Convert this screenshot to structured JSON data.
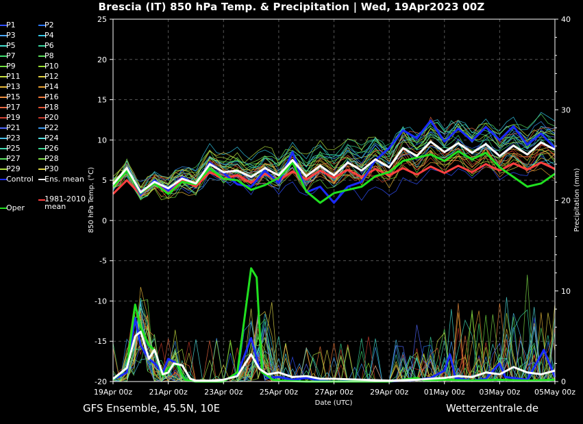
{
  "title": "Brescia  (IT)  850 hPa Temp. & Precipitation | Wed, 19Apr2023 00Z",
  "footer": {
    "source": "GFS Ensemble, 45.5N, 10E",
    "site": "Wetterzentrale.de"
  },
  "legend": [
    {
      "label": "P1",
      "color": "#3050ff"
    },
    {
      "label": "P2",
      "color": "#2a78ff"
    },
    {
      "label": "P3",
      "color": "#4aa8ff"
    },
    {
      "label": "P4",
      "color": "#33c8e8"
    },
    {
      "label": "P5",
      "color": "#44e0d0"
    },
    {
      "label": "P6",
      "color": "#38d8a0"
    },
    {
      "label": "P7",
      "color": "#40e070"
    },
    {
      "label": "P8",
      "color": "#5ae05a"
    },
    {
      "label": "P9",
      "color": "#70e040"
    },
    {
      "label": "P10",
      "color": "#98e030"
    },
    {
      "label": "P11",
      "color": "#c8e040"
    },
    {
      "label": "P12",
      "color": "#e0d040"
    },
    {
      "label": "P13",
      "color": "#e8b838"
    },
    {
      "label": "P14",
      "color": "#e8a030"
    },
    {
      "label": "P15",
      "color": "#f09040"
    },
    {
      "label": "P16",
      "color": "#f07838"
    },
    {
      "label": "P17",
      "color": "#e86840"
    },
    {
      "label": "P18",
      "color": "#e05030"
    },
    {
      "label": "P19",
      "color": "#d04030"
    },
    {
      "label": "P20",
      "color": "#c83828"
    },
    {
      "label": "P21",
      "color": "#5068ff"
    },
    {
      "label": "P22",
      "color": "#3898f0"
    },
    {
      "label": "P23",
      "color": "#48c0e8"
    },
    {
      "label": "P24",
      "color": "#50e0e0"
    },
    {
      "label": "P25",
      "color": "#40d8b0"
    },
    {
      "label": "P26",
      "color": "#38d890"
    },
    {
      "label": "P27",
      "color": "#58e060"
    },
    {
      "label": "P28",
      "color": "#80e048"
    },
    {
      "label": "P29",
      "color": "#b0e040"
    },
    {
      "label": "P30",
      "color": "#e0d848"
    },
    {
      "label": "Control",
      "color": "#1a2aff"
    },
    {
      "label": "Ens. mean",
      "color": "#ffffff"
    },
    {
      "label": "1981-2010 mean",
      "color": "#ff4040"
    },
    {
      "label": "Oper",
      "color": "#20e020"
    }
  ],
  "chart_data": {
    "type": "line",
    "title": "Brescia  (IT)  850 hPa Temp. & Precipitation | Wed, 19Apr2023 00Z",
    "xlabel": "Date (UTC)",
    "ylabel": "850 hPa Temp. (°C)",
    "y2label": "Precipitation (mm)",
    "xlim": [
      0,
      16
    ],
    "x_unit": "days since 19Apr 00z",
    "x_ticks": [
      {
        "day": 0,
        "label": "19Apr 00z"
      },
      {
        "day": 2,
        "label": "21Apr 00z"
      },
      {
        "day": 4,
        "label": "23Apr 00z"
      },
      {
        "day": 6,
        "label": "25Apr 00z"
      },
      {
        "day": 8,
        "label": "27Apr 00z"
      },
      {
        "day": 10,
        "label": "29Apr 00z"
      },
      {
        "day": 12,
        "label": "01May 00z"
      },
      {
        "day": 14,
        "label": "03May 00z"
      },
      {
        "day": 16,
        "label": "05May 00z"
      }
    ],
    "ylim": [
      -20,
      25
    ],
    "y_ticks": [
      "25",
      "20",
      "15",
      "10",
      "5",
      "0",
      "-5",
      "-10",
      "-15",
      "-20"
    ],
    "y2lim": [
      0,
      40
    ],
    "y2_ticks": [
      "40",
      "30",
      "20",
      "10",
      "0"
    ],
    "grid": true,
    "legend_position": "left",
    "series": [
      {
        "name": "Ens. mean",
        "axis": "temp",
        "color": "#ffffff",
        "points": [
          [
            0,
            4.5
          ],
          [
            0.5,
            6.5
          ],
          [
            1,
            3.5
          ],
          [
            1.5,
            4.8
          ],
          [
            2,
            4
          ],
          [
            2.5,
            5.2
          ],
          [
            3,
            4.6
          ],
          [
            3.5,
            7
          ],
          [
            4,
            6
          ],
          [
            4.5,
            6.2
          ],
          [
            5,
            5.4
          ],
          [
            5.5,
            6.5
          ],
          [
            6,
            5.6
          ],
          [
            6.5,
            7.5
          ],
          [
            7,
            5.5
          ],
          [
            7.5,
            6.8
          ],
          [
            8,
            5.6
          ],
          [
            8.5,
            7.2
          ],
          [
            9,
            6.2
          ],
          [
            9.5,
            7.6
          ],
          [
            10,
            6.6
          ],
          [
            10.5,
            9
          ],
          [
            11,
            8
          ],
          [
            11.5,
            9.8
          ],
          [
            12,
            8.5
          ],
          [
            12.5,
            9.6
          ],
          [
            13,
            8.4
          ],
          [
            13.5,
            9.5
          ],
          [
            14,
            8
          ],
          [
            14.5,
            9.3
          ],
          [
            15,
            8.2
          ],
          [
            15.5,
            9.7
          ],
          [
            16,
            8.8
          ]
        ]
      },
      {
        "name": "1981-2010 mean",
        "axis": "temp",
        "color": "#ff4040",
        "points": [
          [
            0,
            3.3
          ],
          [
            0.5,
            5
          ],
          [
            1,
            3.2
          ],
          [
            1.5,
            4.6
          ],
          [
            2,
            3.6
          ],
          [
            2.5,
            5
          ],
          [
            3,
            4.2
          ],
          [
            3.5,
            6
          ],
          [
            4,
            5.2
          ],
          [
            4.5,
            5.6
          ],
          [
            5,
            4.7
          ],
          [
            5.5,
            5.8
          ],
          [
            6,
            5
          ],
          [
            6.5,
            6.1
          ],
          [
            7,
            5.1
          ],
          [
            7.5,
            6.2
          ],
          [
            8,
            5.3
          ],
          [
            8.5,
            6.3
          ],
          [
            9,
            5.4
          ],
          [
            9.5,
            6.4
          ],
          [
            10,
            5.6
          ],
          [
            10.5,
            6.5
          ],
          [
            11,
            5.7
          ],
          [
            11.5,
            6.7
          ],
          [
            12,
            5.9
          ],
          [
            12.5,
            6.8
          ],
          [
            13,
            6
          ],
          [
            13.5,
            7
          ],
          [
            14,
            6.2
          ],
          [
            14.5,
            7.1
          ],
          [
            15,
            6.3
          ],
          [
            15.5,
            7.2
          ],
          [
            16,
            6.4
          ]
        ]
      },
      {
        "name": "Control",
        "axis": "temp",
        "color": "#1a2aff",
        "points": [
          [
            0,
            4.3
          ],
          [
            0.5,
            6.5
          ],
          [
            1,
            3.2
          ],
          [
            1.5,
            5
          ],
          [
            2,
            3.7
          ],
          [
            2.5,
            5.4
          ],
          [
            3,
            4.5
          ],
          [
            3.5,
            7.2
          ],
          [
            4,
            5.9
          ],
          [
            4.5,
            4.5
          ],
          [
            5,
            4.2
          ],
          [
            5.5,
            6.2
          ],
          [
            6,
            4.7
          ],
          [
            6.5,
            8.5
          ],
          [
            7,
            3.5
          ],
          [
            7.5,
            4.2
          ],
          [
            8,
            2.2
          ],
          [
            8.5,
            4.2
          ],
          [
            9,
            4.8
          ],
          [
            9.5,
            7.5
          ],
          [
            10,
            9
          ],
          [
            10.5,
            11.2
          ],
          [
            11,
            10.2
          ],
          [
            11.5,
            12.4
          ],
          [
            12,
            9.8
          ],
          [
            12.5,
            11.4
          ],
          [
            13,
            9.9
          ],
          [
            13.5,
            11.6
          ],
          [
            14,
            10
          ],
          [
            14.5,
            11.7
          ],
          [
            15,
            9.4
          ],
          [
            15.5,
            10.8
          ],
          [
            16,
            9
          ]
        ]
      },
      {
        "name": "Oper",
        "axis": "temp",
        "color": "#20e020",
        "points": [
          [
            0,
            4.2
          ],
          [
            0.5,
            6.2
          ],
          [
            1,
            3.4
          ],
          [
            1.5,
            4.6
          ],
          [
            2,
            3.3
          ],
          [
            2.5,
            4.8
          ],
          [
            3,
            4.5
          ],
          [
            3.5,
            6.5
          ],
          [
            4,
            5.2
          ],
          [
            4.5,
            5
          ],
          [
            5,
            3.8
          ],
          [
            5.5,
            4.4
          ],
          [
            6,
            5.3
          ],
          [
            6.5,
            7.2
          ],
          [
            7,
            3.6
          ],
          [
            7.5,
            2.2
          ],
          [
            8,
            3.4
          ],
          [
            8.5,
            3.8
          ],
          [
            9,
            4.2
          ],
          [
            9.5,
            5.5
          ],
          [
            10,
            6
          ],
          [
            10.5,
            7.4
          ],
          [
            11,
            7.8
          ],
          [
            11.5,
            8.2
          ],
          [
            12,
            7.4
          ],
          [
            12.5,
            8.6
          ],
          [
            13,
            7.6
          ],
          [
            13.5,
            8.4
          ],
          [
            14,
            6.6
          ],
          [
            14.5,
            5.4
          ],
          [
            15,
            4.2
          ],
          [
            15.5,
            4.6
          ],
          [
            16,
            5.8
          ]
        ]
      },
      {
        "name": "Ens. mean",
        "axis": "precip",
        "color": "#ffffff",
        "points": [
          [
            0,
            0.3
          ],
          [
            0.5,
            1.5
          ],
          [
            0.8,
            5
          ],
          [
            1,
            5.5
          ],
          [
            1.3,
            2.5
          ],
          [
            1.5,
            3.5
          ],
          [
            1.8,
            0.8
          ],
          [
            2,
            1
          ],
          [
            2.2,
            2
          ],
          [
            2.5,
            1.8
          ],
          [
            2.8,
            0.3
          ],
          [
            3,
            0.1
          ],
          [
            3.5,
            0.1
          ],
          [
            4,
            0.2
          ],
          [
            4.5,
            0.6
          ],
          [
            5,
            3
          ],
          [
            5.3,
            1.4
          ],
          [
            5.6,
            0.8
          ],
          [
            6,
            1
          ],
          [
            6.5,
            0.5
          ],
          [
            7,
            0.6
          ],
          [
            7.5,
            0.3
          ],
          [
            8,
            0.3
          ],
          [
            9,
            0.2
          ],
          [
            10,
            0.1
          ],
          [
            11,
            0.2
          ],
          [
            11.5,
            0.3
          ],
          [
            12,
            0.4
          ],
          [
            12.5,
            0.6
          ],
          [
            13,
            0.5
          ],
          [
            13.5,
            1
          ],
          [
            14,
            0.8
          ],
          [
            14.5,
            1.6
          ],
          [
            15,
            1
          ],
          [
            15.5,
            0.8
          ],
          [
            16,
            1.2
          ]
        ]
      },
      {
        "name": "Control",
        "axis": "precip",
        "color": "#1a2aff",
        "points": [
          [
            0,
            0.2
          ],
          [
            0.5,
            1
          ],
          [
            0.8,
            7
          ],
          [
            1,
            4
          ],
          [
            1.3,
            2.5
          ],
          [
            1.5,
            2
          ],
          [
            1.8,
            1
          ],
          [
            2,
            2.5
          ],
          [
            2.3,
            2
          ],
          [
            2.6,
            0.2
          ],
          [
            3,
            0
          ],
          [
            3.5,
            0
          ],
          [
            4,
            0.1
          ],
          [
            4.5,
            0.8
          ],
          [
            5,
            4.8
          ],
          [
            5.3,
            1.5
          ],
          [
            5.6,
            0.4
          ],
          [
            6,
            0.5
          ],
          [
            6.5,
            0.2
          ],
          [
            7,
            0.4
          ],
          [
            7.5,
            0.1
          ],
          [
            8,
            0
          ],
          [
            9,
            0.1
          ],
          [
            10,
            0
          ],
          [
            11,
            0.2
          ],
          [
            11.5,
            0.4
          ],
          [
            12,
            1.2
          ],
          [
            12.2,
            3
          ],
          [
            12.4,
            0.4
          ],
          [
            13,
            0.1
          ],
          [
            13.5,
            0.3
          ],
          [
            14,
            2
          ],
          [
            14.2,
            0.5
          ],
          [
            15,
            0.2
          ],
          [
            15.6,
            3.5
          ],
          [
            16,
            0.5
          ]
        ]
      },
      {
        "name": "Oper",
        "axis": "precip",
        "color": "#20e020",
        "points": [
          [
            0,
            0.2
          ],
          [
            0.5,
            1.5
          ],
          [
            0.8,
            8.5
          ],
          [
            1,
            6
          ],
          [
            1.3,
            4
          ],
          [
            1.5,
            3.5
          ],
          [
            1.8,
            0.6
          ],
          [
            2,
            1.5
          ],
          [
            2.3,
            2
          ],
          [
            2.6,
            0.2
          ],
          [
            3,
            0
          ],
          [
            3.5,
            0
          ],
          [
            4,
            0
          ],
          [
            4.5,
            1
          ],
          [
            5,
            12.5
          ],
          [
            5.2,
            11.5
          ],
          [
            5.4,
            1
          ],
          [
            5.8,
            0.2
          ],
          [
            6,
            0.1
          ],
          [
            7,
            0
          ],
          [
            8,
            0
          ],
          [
            9,
            0
          ],
          [
            10,
            0
          ],
          [
            11,
            0.4
          ],
          [
            11.3,
            0.1
          ],
          [
            12,
            0.2
          ],
          [
            13,
            0.1
          ],
          [
            14,
            0.2
          ],
          [
            15,
            0.1
          ],
          [
            16,
            0.2
          ]
        ]
      }
    ]
  }
}
